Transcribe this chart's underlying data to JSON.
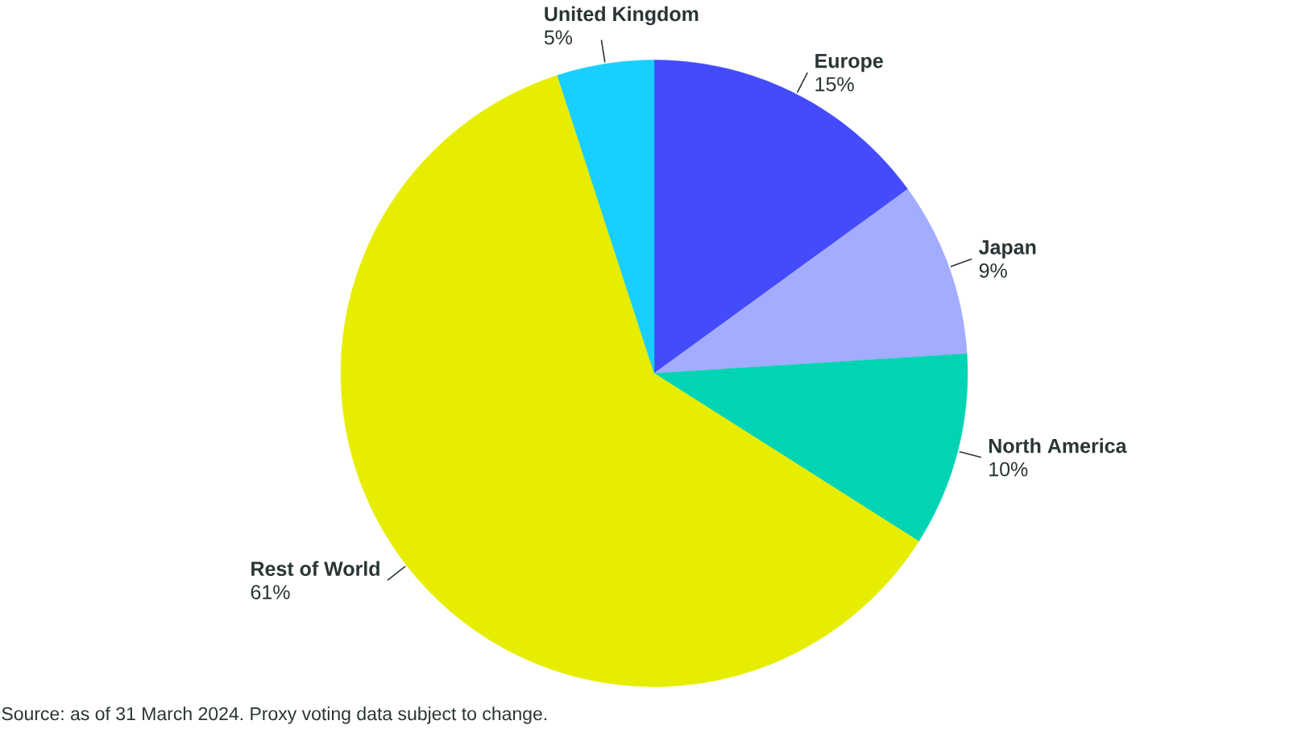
{
  "chart_data": {
    "type": "pie",
    "categories": [
      "Europe",
      "Japan",
      "North America",
      "Rest of World",
      "United Kingdom"
    ],
    "values": [
      15,
      9,
      10,
      61,
      5
    ],
    "colors": [
      "#444bfa",
      "#a3acff",
      "#00d4b4",
      "#e6ed00",
      "#19cfff"
    ],
    "value_labels": [
      "15%",
      "9%",
      "10%",
      "61%",
      "5%"
    ],
    "annotations": [
      "Source: as of 31 March 2024. Proxy voting data subject to change."
    ]
  }
}
